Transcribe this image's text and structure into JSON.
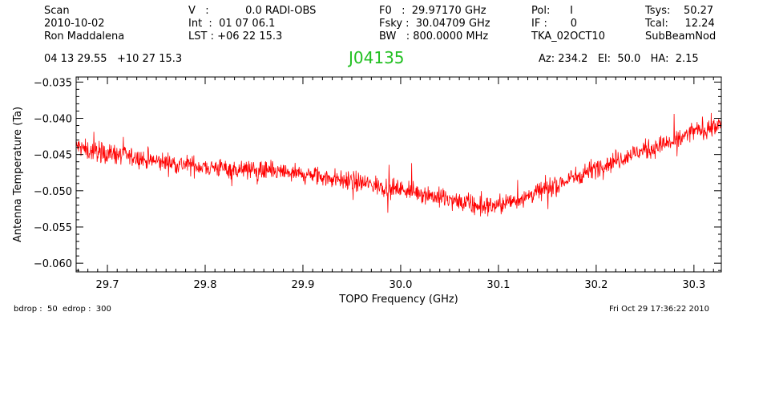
{
  "header": {
    "scan": "Scan",
    "date": "2010-10-02",
    "observer": "Ron Maddalena",
    "v_line": "V   :           0.0 RADI-OBS",
    "int_line": "Int  :  01 07 06.1",
    "lst_line": "LST : +06 22 15.3",
    "f0_line": "F0   :  29.97170 GHz",
    "fsky_line": "Fsky :  30.04709 GHz",
    "bw_line": "BW   : 800.0000 MHz",
    "pol_line": "Pol:      I",
    "if_line": "IF :       0",
    "proj": "TKA_02OCT10",
    "tsys_line": "Tsys:    50.27",
    "tcal_line": "Tcal:     12.24",
    "proc": "SubBeamNod",
    "coords": "04 13 29.55   +10 27 15.3",
    "source": "J04135",
    "azel": "Az: 234.2   El:  50.0   HA:  2.15"
  },
  "footer": {
    "drops": "bdrop :  50  edrop :  300",
    "timestamp": "Fri Oct 29 17:36:22 2010"
  },
  "chart_data": {
    "type": "line",
    "xlabel": "TOPO Frequency (GHz)",
    "ylabel": "Antenna Temperature (Ta)",
    "xlim": [
      29.668,
      30.328
    ],
    "ylim": [
      -0.0612,
      -0.0343
    ],
    "x_ticks": [
      29.7,
      29.8,
      29.9,
      30.0,
      30.1,
      30.2,
      30.3
    ],
    "x_tick_labels": [
      "29.7",
      "29.8",
      "29.9",
      "30.0",
      "30.1",
      "30.2",
      "30.3"
    ],
    "y_ticks": [
      -0.035,
      -0.04,
      -0.045,
      -0.05,
      -0.055,
      -0.06
    ],
    "y_tick_labels": [
      "−0.035",
      "−0.040",
      "−0.045",
      "−0.050",
      "−0.055",
      "−0.060"
    ],
    "line_color": "#ff0000",
    "series": [
      {
        "x": [
          29.668,
          29.68,
          29.7,
          29.72,
          29.74,
          29.76,
          29.78,
          29.8,
          29.82,
          29.84,
          29.86,
          29.88,
          29.9,
          29.92,
          29.94,
          29.96,
          29.98,
          30.0,
          30.02,
          30.04,
          30.06,
          30.08,
          30.1,
          30.12,
          30.14,
          30.16,
          30.18,
          30.2,
          30.22,
          30.24,
          30.26,
          30.28,
          30.3,
          30.328
        ],
        "values": [
          -0.0438,
          -0.0445,
          -0.0448,
          -0.0452,
          -0.0458,
          -0.0461,
          -0.0464,
          -0.0467,
          -0.0469,
          -0.0471,
          -0.0473,
          -0.0475,
          -0.0478,
          -0.0481,
          -0.0485,
          -0.0489,
          -0.0494,
          -0.0498,
          -0.0502,
          -0.051,
          -0.0516,
          -0.0522,
          -0.052,
          -0.0512,
          -0.0502,
          -0.0492,
          -0.048,
          -0.0468,
          -0.0458,
          -0.0448,
          -0.044,
          -0.0432,
          -0.0418,
          -0.041
        ]
      }
    ]
  }
}
